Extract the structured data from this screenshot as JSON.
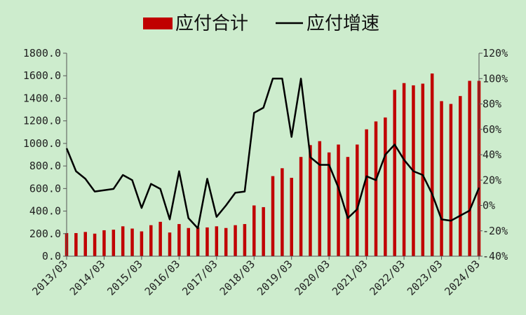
{
  "chart_data": {
    "type": "bar",
    "legend": {
      "placement": "top",
      "items": [
        "应付合计",
        "应付增速"
      ]
    },
    "colors": {
      "bar": "#c00000",
      "line": "#000000",
      "background": "#cdeccd"
    },
    "x_tick_labels": [
      "2013/03",
      "2014/03",
      "2015/03",
      "2016/03",
      "2017/03",
      "2018/03",
      "2019/03",
      "2020/03",
      "2021/03",
      "2022/03",
      "2023/03",
      "2024/03"
    ],
    "y_left": {
      "ylim": [
        0,
        1800
      ],
      "ticks": [
        "0.0",
        "200.0",
        "400.0",
        "600.0",
        "800.0",
        "1000.0",
        "1200.0",
        "1400.0",
        "1600.0",
        "1800.0"
      ]
    },
    "y_right": {
      "ylim": [
        -40,
        120
      ],
      "ticks": [
        "-40%",
        "-20%",
        "0%",
        "20%",
        "40%",
        "60%",
        "80%",
        "100%",
        "120%"
      ]
    },
    "grid": false,
    "categories": [
      "2013Q1",
      "2013Q2",
      "2013Q3",
      "2013Q4",
      "2014Q1",
      "2014Q2",
      "2014Q3",
      "2014Q4",
      "2015Q1",
      "2015Q2",
      "2015Q3",
      "2015Q4",
      "2016Q1",
      "2016Q2",
      "2016Q3",
      "2016Q4",
      "2017Q1",
      "2017Q2",
      "2017Q3",
      "2017Q4",
      "2018Q1",
      "2018Q2",
      "2018Q3",
      "2018Q4",
      "2019Q1",
      "2019Q2",
      "2019Q3",
      "2019Q4",
      "2020Q1",
      "2020Q2",
      "2020Q3",
      "2020Q4",
      "2021Q1",
      "2021Q2",
      "2021Q3",
      "2021Q4",
      "2022Q1",
      "2022Q2",
      "2022Q3",
      "2022Q4",
      "2023Q1",
      "2023Q2",
      "2023Q3",
      "2023Q4",
      "2024Q1"
    ],
    "series": [
      {
        "name": "应付合计",
        "type": "bar",
        "axis": "left",
        "values": [
          205,
          205,
          215,
          200,
          230,
          235,
          265,
          245,
          220,
          275,
          305,
          210,
          285,
          250,
          255,
          255,
          265,
          250,
          275,
          285,
          450,
          435,
          710,
          780,
          695,
          880,
          985,
          1020,
          920,
          990,
          880,
          990,
          1125,
          1195,
          1230,
          1475,
          1535,
          1515,
          1530,
          1620,
          1375,
          1350,
          1420,
          1555,
          1555
        ]
      },
      {
        "name": "应付增速",
        "type": "line",
        "axis": "right",
        "values": [
          45,
          27,
          21,
          11,
          12,
          13,
          24,
          20,
          -2,
          17,
          13,
          -11,
          27,
          -10,
          -18,
          21,
          -9,
          0,
          10,
          11,
          73,
          77,
          100,
          100,
          54,
          100,
          38,
          32,
          32,
          14,
          -10,
          -3,
          23,
          20,
          40,
          48,
          36,
          27,
          24,
          9,
          -11,
          -12,
          -8,
          -4,
          14
        ]
      }
    ]
  }
}
